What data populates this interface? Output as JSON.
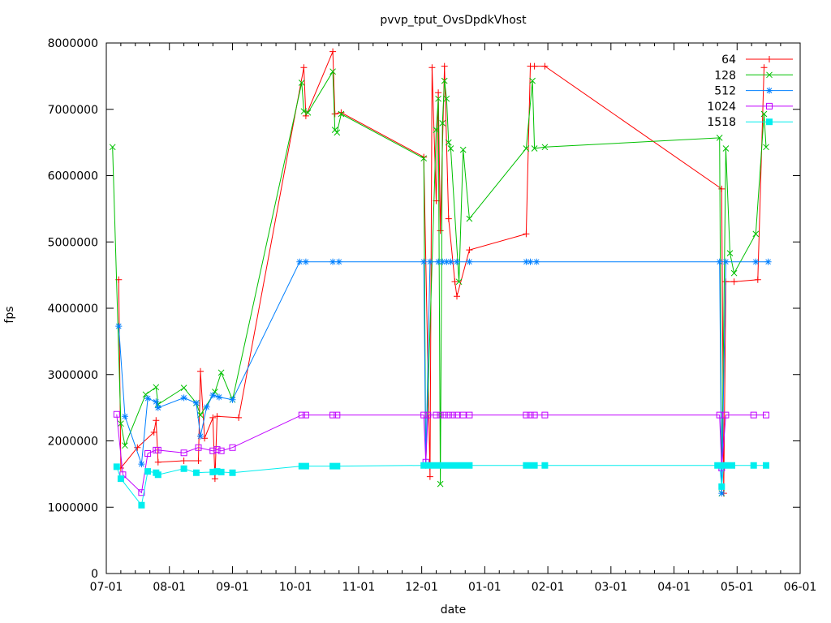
{
  "chart_data": {
    "type": "line",
    "title": "pvvp_tput_OvsDpdkVhost",
    "xlabel": "date",
    "ylabel": "fps",
    "x_tick_labels": [
      "07-01",
      "08-01",
      "09-01",
      "10-01",
      "11-01",
      "12-01",
      "01-01",
      "02-01",
      "03-01",
      "04-01",
      "05-01",
      "06-01"
    ],
    "y_ticks": [
      0,
      1000000,
      2000000,
      3000000,
      4000000,
      5000000,
      6000000,
      7000000,
      8000000
    ],
    "ylim": [
      0,
      8000000
    ],
    "grid": false,
    "legend_position": "top-right-inside",
    "frame_color": "#000000",
    "series": [
      {
        "name": "64",
        "color": "#ff0000",
        "marker": "plus",
        "points": [
          [
            "07-07",
            4430000
          ],
          [
            "07-08",
            1590000
          ],
          [
            "07-16",
            1900000
          ],
          [
            "07-24",
            2130000
          ],
          [
            "07-25",
            2310000
          ],
          [
            "07-26",
            1680000
          ],
          [
            "08-08",
            1700000
          ],
          [
            "08-15",
            1700000
          ],
          [
            "08-16",
            3050000
          ],
          [
            "08-18",
            2040000
          ],
          [
            "08-22",
            2350000
          ],
          [
            "08-23",
            1430000
          ],
          [
            "08-24",
            2370000
          ],
          [
            "09-04",
            2350000
          ],
          [
            "10-05",
            7630000
          ],
          [
            "10-06",
            6900000
          ],
          [
            "10-19",
            7870000
          ],
          [
            "10-20",
            6930000
          ],
          [
            "10-23",
            6950000
          ],
          [
            "12-02",
            6280000
          ],
          [
            "12-05",
            1460000
          ],
          [
            "12-06",
            7630000
          ],
          [
            "12-08",
            5620000
          ],
          [
            "12-09",
            7250000
          ],
          [
            "12-10",
            5170000
          ],
          [
            "12-12",
            7650000
          ],
          [
            "12-14",
            5350000
          ],
          [
            "12-17",
            4400000
          ],
          [
            "12-18",
            4180000
          ],
          [
            "12-24",
            4880000
          ],
          [
            "01-21",
            5120000
          ],
          [
            "01-23",
            7650000
          ],
          [
            "01-25",
            7650000
          ],
          [
            "01-30",
            7650000
          ],
          [
            "04-24",
            5800000
          ],
          [
            "04-25",
            1210000
          ],
          [
            "04-26",
            4400000
          ],
          [
            "04-30",
            4400000
          ],
          [
            "05-11",
            4430000
          ],
          [
            "05-14",
            7630000
          ]
        ]
      },
      {
        "name": "128",
        "color": "#00c000",
        "marker": "cross",
        "points": [
          [
            "07-04",
            6430000
          ],
          [
            "07-08",
            2260000
          ],
          [
            "07-10",
            1930000
          ],
          [
            "07-20",
            2700000
          ],
          [
            "07-25",
            2810000
          ],
          [
            "07-26",
            2550000
          ],
          [
            "08-08",
            2800000
          ],
          [
            "08-14",
            2570000
          ],
          [
            "08-16",
            2390000
          ],
          [
            "08-23",
            2740000
          ],
          [
            "08-26",
            3030000
          ],
          [
            "09-01",
            2620000
          ],
          [
            "10-04",
            7400000
          ],
          [
            "10-05",
            6970000
          ],
          [
            "10-07",
            6950000
          ],
          [
            "10-19",
            7570000
          ],
          [
            "10-20",
            6690000
          ],
          [
            "10-21",
            6650000
          ],
          [
            "10-23",
            6930000
          ],
          [
            "12-02",
            6260000
          ],
          [
            "12-03",
            1630000
          ],
          [
            "12-08",
            6690000
          ],
          [
            "12-09",
            7160000
          ],
          [
            "12-10",
            1350000
          ],
          [
            "12-11",
            6790000
          ],
          [
            "12-12",
            7430000
          ],
          [
            "12-13",
            7160000
          ],
          [
            "12-14",
            6500000
          ],
          [
            "12-15",
            6410000
          ],
          [
            "12-19",
            4400000
          ],
          [
            "12-21",
            6390000
          ],
          [
            "12-24",
            5350000
          ],
          [
            "01-21",
            6410000
          ],
          [
            "01-24",
            7430000
          ],
          [
            "01-25",
            6410000
          ],
          [
            "01-30",
            6430000
          ],
          [
            "04-23",
            6570000
          ],
          [
            "04-24",
            1210000
          ],
          [
            "04-26",
            6410000
          ],
          [
            "04-28",
            4830000
          ],
          [
            "04-30",
            4530000
          ],
          [
            "05-10",
            5120000
          ],
          [
            "05-14",
            6930000
          ],
          [
            "05-15",
            6430000
          ]
        ]
      },
      {
        "name": "512",
        "color": "#0080ff",
        "marker": "asterisk",
        "points": [
          [
            "07-07",
            3730000
          ],
          [
            "07-10",
            2370000
          ],
          [
            "07-18",
            1650000
          ],
          [
            "07-21",
            2640000
          ],
          [
            "07-25",
            2590000
          ],
          [
            "07-26",
            2500000
          ],
          [
            "08-08",
            2650000
          ],
          [
            "08-14",
            2570000
          ],
          [
            "08-16",
            2070000
          ],
          [
            "08-19",
            2510000
          ],
          [
            "08-22",
            2690000
          ],
          [
            "08-25",
            2660000
          ],
          [
            "09-01",
            2620000
          ],
          [
            "10-03",
            4700000
          ],
          [
            "10-06",
            4700000
          ],
          [
            "10-19",
            4700000
          ],
          [
            "10-22",
            4700000
          ],
          [
            "12-02",
            4700000
          ],
          [
            "12-03",
            1630000
          ],
          [
            "12-05",
            4700000
          ],
          [
            "12-09",
            4700000
          ],
          [
            "12-11",
            4700000
          ],
          [
            "12-13",
            4700000
          ],
          [
            "12-15",
            4700000
          ],
          [
            "12-18",
            4700000
          ],
          [
            "12-24",
            4700000
          ],
          [
            "01-21",
            4700000
          ],
          [
            "01-23",
            4700000
          ],
          [
            "01-26",
            4700000
          ],
          [
            "04-23",
            4700000
          ],
          [
            "04-24",
            1210000
          ],
          [
            "04-26",
            4700000
          ],
          [
            "05-10",
            4700000
          ],
          [
            "05-16",
            4700000
          ]
        ]
      },
      {
        "name": "1024",
        "color": "#c000ff",
        "marker": "square-open",
        "points": [
          [
            "07-06",
            2400000
          ],
          [
            "07-09",
            1490000
          ],
          [
            "07-18",
            1220000
          ],
          [
            "07-21",
            1810000
          ],
          [
            "07-25",
            1860000
          ],
          [
            "07-26",
            1860000
          ],
          [
            "08-08",
            1820000
          ],
          [
            "08-15",
            1900000
          ],
          [
            "08-22",
            1850000
          ],
          [
            "08-24",
            1870000
          ],
          [
            "08-26",
            1850000
          ],
          [
            "09-01",
            1900000
          ],
          [
            "10-04",
            2390000
          ],
          [
            "10-06",
            2390000
          ],
          [
            "10-19",
            2390000
          ],
          [
            "10-21",
            2390000
          ],
          [
            "12-02",
            2390000
          ],
          [
            "12-03",
            1680000
          ],
          [
            "12-04",
            2390000
          ],
          [
            "12-08",
            2390000
          ],
          [
            "12-10",
            2390000
          ],
          [
            "12-12",
            2390000
          ],
          [
            "12-14",
            2390000
          ],
          [
            "12-16",
            2390000
          ],
          [
            "12-18",
            2390000
          ],
          [
            "12-21",
            2390000
          ],
          [
            "12-24",
            2390000
          ],
          [
            "01-21",
            2390000
          ],
          [
            "01-23",
            2390000
          ],
          [
            "01-25",
            2390000
          ],
          [
            "01-30",
            2390000
          ],
          [
            "04-23",
            2390000
          ],
          [
            "04-24",
            1590000
          ],
          [
            "04-26",
            2390000
          ],
          [
            "05-09",
            2390000
          ],
          [
            "05-15",
            2390000
          ]
        ]
      },
      {
        "name": "1518",
        "color": "#00eeee",
        "marker": "square-filled",
        "points": [
          [
            "07-06",
            1610000
          ],
          [
            "07-08",
            1430000
          ],
          [
            "07-18",
            1030000
          ],
          [
            "07-21",
            1540000
          ],
          [
            "07-25",
            1520000
          ],
          [
            "07-26",
            1490000
          ],
          [
            "08-08",
            1580000
          ],
          [
            "08-14",
            1520000
          ],
          [
            "08-22",
            1530000
          ],
          [
            "08-24",
            1540000
          ],
          [
            "08-26",
            1530000
          ],
          [
            "09-01",
            1520000
          ],
          [
            "10-04",
            1620000
          ],
          [
            "10-06",
            1620000
          ],
          [
            "10-19",
            1620000
          ],
          [
            "10-21",
            1620000
          ],
          [
            "12-02",
            1630000
          ],
          [
            "12-05",
            1630000
          ],
          [
            "12-08",
            1630000
          ],
          [
            "12-10",
            1630000
          ],
          [
            "12-12",
            1630000
          ],
          [
            "12-14",
            1630000
          ],
          [
            "12-16",
            1630000
          ],
          [
            "12-18",
            1630000
          ],
          [
            "12-21",
            1630000
          ],
          [
            "12-24",
            1630000
          ],
          [
            "01-21",
            1630000
          ],
          [
            "01-23",
            1630000
          ],
          [
            "01-25",
            1630000
          ],
          [
            "01-30",
            1630000
          ],
          [
            "04-22",
            1630000
          ],
          [
            "04-23",
            1630000
          ],
          [
            "04-24",
            1310000
          ],
          [
            "04-25",
            1630000
          ],
          [
            "04-27",
            1630000
          ],
          [
            "04-29",
            1630000
          ],
          [
            "05-09",
            1630000
          ],
          [
            "05-15",
            1630000
          ]
        ]
      }
    ]
  }
}
